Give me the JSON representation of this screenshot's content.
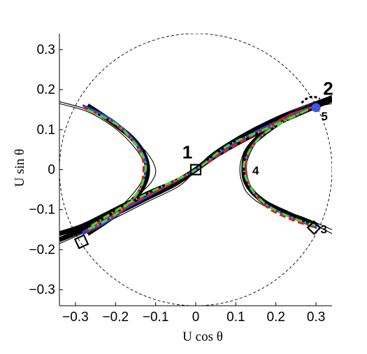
{
  "chart_data": {
    "type": "line",
    "title": "",
    "xlabel": "U cos θ",
    "ylabel": "U sin θ",
    "xlim": [
      -0.34,
      0.34
    ],
    "ylim": [
      -0.34,
      0.34
    ],
    "xticks": [
      -0.3,
      -0.2,
      -0.1,
      0,
      0.1,
      0.2,
      0.3
    ],
    "yticks": [
      -0.3,
      -0.2,
      -0.1,
      0,
      0.1,
      0.2,
      0.3
    ],
    "xtick_labels": [
      "−0.3",
      "−0.2",
      "−0.1",
      "0",
      "0.1",
      "0.2",
      "0.3"
    ],
    "ytick_labels": [
      "−0.3",
      "−0.2",
      "−0.1",
      "0",
      "0.1",
      "0.2",
      "0.3"
    ],
    "grid": false,
    "legend": "none",
    "reference_circle": {
      "radius": 0.34,
      "style": "dashed",
      "color": "#000000"
    },
    "series": [
      {
        "style": "solid-thin",
        "color": "#000000",
        "curves": [
          [
            [
              0.34,
              0.17
            ],
            [
              0.29,
              0.16
            ],
            [
              0.22,
              0.13
            ],
            [
              0.17,
              0.1
            ],
            [
              0.13,
              0.06
            ],
            [
              0.115,
              0.03
            ],
            [
              0.11,
              0.0
            ],
            [
              0.115,
              -0.03
            ],
            [
              0.13,
              -0.06
            ],
            [
              0.17,
              -0.09
            ],
            [
              0.23,
              -0.11
            ],
            [
              0.28,
              -0.13
            ],
            [
              0.34,
              -0.16
            ]
          ],
          [
            [
              0.34,
              0.165
            ],
            [
              0.27,
              0.15
            ],
            [
              0.21,
              0.12
            ],
            [
              0.16,
              0.08
            ],
            [
              0.135,
              0.04
            ],
            [
              0.125,
              0.0
            ],
            [
              0.135,
              -0.04
            ],
            [
              0.16,
              -0.08
            ],
            [
              0.21,
              -0.1
            ],
            [
              0.27,
              -0.12
            ],
            [
              0.34,
              -0.15
            ]
          ],
          [
            [
              -0.34,
              0.17
            ],
            [
              -0.27,
              0.15
            ],
            [
              -0.21,
              0.12
            ],
            [
              -0.16,
              0.08
            ],
            [
              -0.12,
              0.04
            ],
            [
              -0.1,
              0.0
            ],
            [
              -0.11,
              -0.03
            ],
            [
              -0.14,
              -0.06
            ],
            [
              -0.19,
              -0.1
            ],
            [
              -0.25,
              -0.13
            ],
            [
              -0.34,
              -0.16
            ]
          ],
          [
            [
              -0.34,
              0.165
            ],
            [
              -0.27,
              0.145
            ],
            [
              -0.21,
              0.11
            ],
            [
              -0.165,
              0.07
            ],
            [
              -0.135,
              0.03
            ],
            [
              -0.125,
              0.0
            ],
            [
              -0.135,
              -0.03
            ],
            [
              -0.165,
              -0.07
            ],
            [
              -0.21,
              -0.11
            ],
            [
              -0.27,
              -0.14
            ],
            [
              -0.34,
              -0.16
            ]
          ],
          [
            [
              -0.34,
              -0.185
            ],
            [
              -0.24,
              -0.14
            ],
            [
              -0.12,
              -0.08
            ],
            [
              -0.04,
              -0.04
            ],
            [
              0.0,
              0.0
            ],
            [
              0.04,
              0.04
            ],
            [
              0.12,
              0.09
            ],
            [
              0.22,
              0.14
            ],
            [
              0.34,
              0.185
            ]
          ]
        ]
      },
      {
        "style": "solid-thick",
        "color": "#000000",
        "curves": [
          [
            [
              -0.34,
              -0.175
            ],
            [
              -0.28,
              -0.15
            ],
            [
              -0.2,
              -0.11
            ],
            [
              -0.12,
              -0.07
            ],
            [
              -0.05,
              -0.035
            ],
            [
              0.0,
              0.0
            ],
            [
              0.05,
              0.035
            ],
            [
              0.12,
              0.075
            ],
            [
              0.2,
              0.115
            ],
            [
              0.28,
              0.15
            ],
            [
              0.34,
              0.175
            ]
          ],
          [
            [
              -0.34,
              -0.16
            ],
            [
              -0.28,
              -0.14
            ],
            [
              -0.2,
              -0.1
            ],
            [
              -0.12,
              -0.06
            ],
            [
              -0.05,
              -0.03
            ],
            [
              0.0,
              0.0
            ],
            [
              0.05,
              0.04
            ],
            [
              0.12,
              0.085
            ],
            [
              0.2,
              0.125
            ],
            [
              0.28,
              0.155
            ],
            [
              0.34,
              0.18
            ]
          ],
          [
            [
              0.3,
              0.16
            ],
            [
              0.23,
              0.13
            ],
            [
              0.17,
              0.09
            ],
            [
              0.13,
              0.05
            ],
            [
              0.12,
              0.0
            ],
            [
              0.13,
              -0.04
            ],
            [
              0.17,
              -0.08
            ],
            [
              0.23,
              -0.11
            ],
            [
              0.3,
              -0.14
            ]
          ],
          [
            [
              -0.27,
              0.16
            ],
            [
              -0.21,
              0.12
            ],
            [
              -0.16,
              0.08
            ],
            [
              -0.13,
              0.04
            ],
            [
              -0.12,
              0.0
            ],
            [
              -0.13,
              -0.04
            ],
            [
              -0.16,
              -0.08
            ],
            [
              -0.21,
              -0.12
            ],
            [
              -0.27,
              -0.16
            ]
          ]
        ]
      },
      {
        "style": "dotted",
        "color": "#2b3fd6",
        "curves": [
          [
            [
              0.3,
              0.16
            ],
            [
              0.23,
              0.135
            ],
            [
              0.175,
              0.095
            ],
            [
              0.135,
              0.05
            ],
            [
              0.125,
              0.0
            ],
            [
              0.14,
              -0.05
            ],
            [
              0.18,
              -0.09
            ],
            [
              0.24,
              -0.12
            ],
            [
              0.3,
              -0.145
            ]
          ],
          [
            [
              -0.28,
              0.16
            ],
            [
              -0.21,
              0.125
            ],
            [
              -0.16,
              0.08
            ],
            [
              -0.13,
              0.035
            ],
            [
              -0.125,
              0.0
            ],
            [
              -0.14,
              -0.05
            ],
            [
              -0.18,
              -0.1
            ],
            [
              -0.23,
              -0.135
            ],
            [
              -0.28,
              -0.16
            ]
          ],
          [
            [
              -0.28,
              -0.155
            ],
            [
              -0.18,
              -0.1
            ],
            [
              -0.08,
              -0.045
            ],
            [
              0.0,
              0.0
            ],
            [
              0.08,
              0.055
            ],
            [
              0.18,
              0.11
            ],
            [
              0.3,
              0.16
            ]
          ]
        ]
      },
      {
        "style": "dashed",
        "color": "#e01b1b",
        "curves": [
          [
            [
              0.29,
              0.155
            ],
            [
              0.22,
              0.13
            ],
            [
              0.17,
              0.09
            ],
            [
              0.135,
              0.05
            ],
            [
              0.125,
              0.0
            ],
            [
              0.14,
              -0.05
            ],
            [
              0.18,
              -0.095
            ],
            [
              0.24,
              -0.125
            ],
            [
              0.3,
              -0.145
            ]
          ],
          [
            [
              -0.28,
              0.155
            ],
            [
              -0.21,
              0.12
            ],
            [
              -0.16,
              0.075
            ],
            [
              -0.135,
              0.035
            ],
            [
              -0.13,
              0.0
            ],
            [
              -0.14,
              -0.05
            ],
            [
              -0.18,
              -0.1
            ],
            [
              -0.23,
              -0.13
            ],
            [
              -0.27,
              -0.155
            ]
          ],
          [
            [
              -0.27,
              -0.15
            ],
            [
              -0.18,
              -0.095
            ],
            [
              -0.08,
              -0.045
            ],
            [
              0.0,
              0.0
            ],
            [
              0.08,
              0.05
            ],
            [
              0.18,
              0.105
            ],
            [
              0.29,
              0.155
            ]
          ]
        ]
      },
      {
        "style": "dash-dot",
        "color": "#44d435",
        "curves": [
          [
            [
              0.28,
              0.15
            ],
            [
              0.22,
              0.12
            ],
            [
              0.165,
              0.085
            ],
            [
              0.13,
              0.04
            ],
            [
              0.12,
              0.0
            ],
            [
              0.14,
              -0.05
            ],
            [
              0.18,
              -0.09
            ],
            [
              0.24,
              -0.12
            ],
            [
              0.3,
              -0.14
            ]
          ],
          [
            [
              -0.27,
              0.15
            ],
            [
              -0.2,
              0.115
            ],
            [
              -0.155,
              0.07
            ],
            [
              -0.13,
              0.03
            ],
            [
              -0.125,
              0.0
            ],
            [
              -0.14,
              -0.05
            ],
            [
              -0.18,
              -0.095
            ],
            [
              -0.22,
              -0.125
            ],
            [
              -0.27,
              -0.15
            ]
          ],
          [
            [
              -0.26,
              -0.14
            ],
            [
              -0.17,
              -0.085
            ],
            [
              -0.08,
              -0.04
            ],
            [
              0.0,
              0.0
            ],
            [
              0.08,
              0.06
            ],
            [
              0.17,
              0.1
            ],
            [
              0.28,
              0.15
            ]
          ]
        ]
      }
    ],
    "markers": [
      {
        "label": "1",
        "shape": "square",
        "x": 0.0,
        "y": 0.0
      },
      {
        "label": "2",
        "shape": "dashed-arc",
        "x": 0.285,
        "y": 0.17
      },
      {
        "label": "3",
        "shape": "diamond",
        "x": 0.295,
        "y": -0.145
      },
      {
        "label": "4",
        "shape": "none",
        "x": 0.125,
        "y": 0.0
      },
      {
        "label": "5",
        "shape": "filled-circle",
        "x": 0.3,
        "y": 0.155,
        "color": "#3f56e6"
      },
      {
        "label": "",
        "shape": "square",
        "x": -0.285,
        "y": -0.18
      }
    ]
  }
}
